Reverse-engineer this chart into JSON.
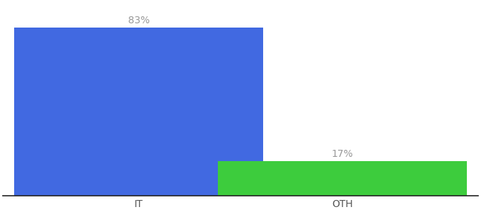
{
  "categories": [
    "IT",
    "OTH"
  ],
  "values": [
    83,
    17
  ],
  "bar_colors": [
    "#4169e1",
    "#3dcc3d"
  ],
  "bar_labels": [
    "83%",
    "17%"
  ],
  "background_color": "#ffffff",
  "ylim": [
    0,
    95
  ],
  "bar_width": 0.55,
  "label_fontsize": 10,
  "tick_fontsize": 10,
  "label_color": "#999999",
  "tick_color": "#555555",
  "x_positions": [
    0.3,
    0.75
  ]
}
